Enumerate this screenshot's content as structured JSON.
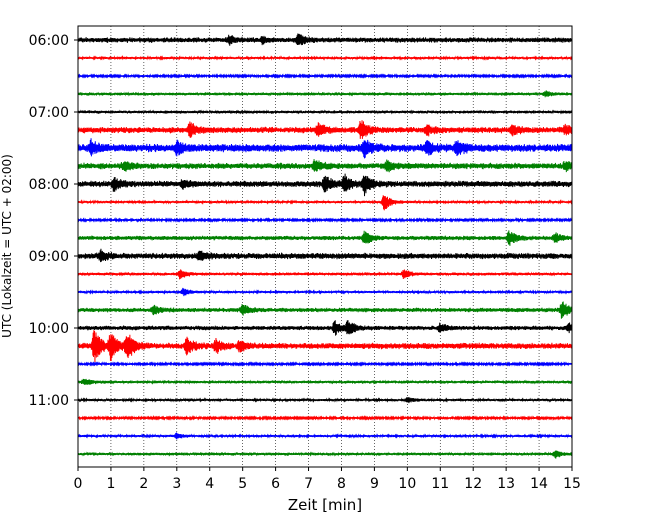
{
  "chart_data": {
    "type": "line",
    "title": "",
    "xlabel": "Zeit  [min]",
    "ylabel": "UTC (Lokalzeit = UTC + 02:00)",
    "xlim": [
      0,
      15
    ],
    "x_ticks": [
      "0",
      "1",
      "2",
      "3",
      "4",
      "5",
      "6",
      "7",
      "8",
      "9",
      "10",
      "11",
      "12",
      "13",
      "14",
      "15"
    ],
    "y_ticks": [
      "06:00",
      "07:00",
      "08:00",
      "09:00",
      "10:00",
      "11:00"
    ],
    "grid": "vertical dotted at each minute",
    "line_interval_minutes": 15,
    "colors": [
      "#000000",
      "#ff0000",
      "#0000ff",
      "#008000"
    ],
    "traces": [
      {
        "start": "06:00",
        "color": "#000000",
        "noise": 0.3,
        "events": [
          {
            "t": 4.6,
            "amp": 0.45
          },
          {
            "t": 5.6,
            "amp": 0.35
          },
          {
            "t": 6.7,
            "amp": 0.8
          }
        ]
      },
      {
        "start": "06:15",
        "color": "#ff0000",
        "noise": 0.15,
        "events": []
      },
      {
        "start": "06:30",
        "color": "#0000ff",
        "noise": 0.12,
        "events": []
      },
      {
        "start": "06:45",
        "color": "#008000",
        "noise": 0.18,
        "events": [
          {
            "t": 14.2,
            "amp": 0.3
          }
        ]
      },
      {
        "start": "07:00",
        "color": "#000000",
        "noise": 0.18,
        "events": []
      },
      {
        "start": "07:15",
        "color": "#ff0000",
        "noise": 0.35,
        "events": [
          {
            "t": 3.4,
            "amp": 0.9
          },
          {
            "t": 7.3,
            "amp": 0.8
          },
          {
            "t": 8.6,
            "amp": 1.1
          },
          {
            "t": 10.6,
            "amp": 0.5
          },
          {
            "t": 13.2,
            "amp": 0.6
          },
          {
            "t": 14.8,
            "amp": 0.5
          }
        ]
      },
      {
        "start": "07:30",
        "color": "#0000ff",
        "noise": 0.45,
        "events": [
          {
            "t": 0.4,
            "amp": 0.8
          },
          {
            "t": 3.0,
            "amp": 0.8
          },
          {
            "t": 8.7,
            "amp": 1.0
          },
          {
            "t": 10.6,
            "amp": 0.8
          },
          {
            "t": 11.5,
            "amp": 1.0
          }
        ]
      },
      {
        "start": "07:45",
        "color": "#008000",
        "noise": 0.35,
        "events": [
          {
            "t": 1.4,
            "amp": 0.6
          },
          {
            "t": 7.2,
            "amp": 0.7
          },
          {
            "t": 9.4,
            "amp": 0.6
          },
          {
            "t": 14.8,
            "amp": 0.5
          }
        ]
      },
      {
        "start": "08:00",
        "color": "#000000",
        "noise": 0.35,
        "events": [
          {
            "t": 1.1,
            "amp": 0.7
          },
          {
            "t": 3.2,
            "amp": 0.5
          },
          {
            "t": 7.5,
            "amp": 1.0
          },
          {
            "t": 8.1,
            "amp": 1.0
          },
          {
            "t": 8.7,
            "amp": 1.2
          }
        ]
      },
      {
        "start": "08:15",
        "color": "#ff0000",
        "noise": 0.15,
        "events": [
          {
            "t": 9.3,
            "amp": 1.0
          }
        ]
      },
      {
        "start": "08:30",
        "color": "#0000ff",
        "noise": 0.12,
        "events": []
      },
      {
        "start": "08:45",
        "color": "#008000",
        "noise": 0.25,
        "events": [
          {
            "t": 8.7,
            "amp": 0.8
          },
          {
            "t": 13.1,
            "amp": 0.9
          },
          {
            "t": 14.5,
            "amp": 0.5
          }
        ]
      },
      {
        "start": "09:00",
        "color": "#000000",
        "noise": 0.35,
        "events": [
          {
            "t": 0.7,
            "amp": 0.6
          },
          {
            "t": 3.7,
            "amp": 0.5
          }
        ]
      },
      {
        "start": "09:15",
        "color": "#ff0000",
        "noise": 0.18,
        "events": [
          {
            "t": 3.1,
            "amp": 0.5
          },
          {
            "t": 9.9,
            "amp": 0.5
          }
        ]
      },
      {
        "start": "09:30",
        "color": "#0000ff",
        "noise": 0.15,
        "events": [
          {
            "t": 3.2,
            "amp": 0.4
          }
        ]
      },
      {
        "start": "09:45",
        "color": "#008000",
        "noise": 0.25,
        "events": [
          {
            "t": 2.3,
            "amp": 0.5
          },
          {
            "t": 5.0,
            "amp": 0.6
          },
          {
            "t": 14.7,
            "amp": 1.0
          }
        ]
      },
      {
        "start": "10:00",
        "color": "#000000",
        "noise": 0.25,
        "events": [
          {
            "t": 7.8,
            "amp": 0.8
          },
          {
            "t": 8.2,
            "amp": 0.9
          },
          {
            "t": 11.0,
            "amp": 0.5
          },
          {
            "t": 14.9,
            "amp": 0.5
          }
        ]
      },
      {
        "start": "10:15",
        "color": "#ff0000",
        "noise": 0.35,
        "events": [
          {
            "t": 0.5,
            "amp": 2.0
          },
          {
            "t": 1.0,
            "amp": 1.6
          },
          {
            "t": 1.5,
            "amp": 1.6
          },
          {
            "t": 3.3,
            "amp": 1.0
          },
          {
            "t": 4.2,
            "amp": 0.8
          },
          {
            "t": 4.9,
            "amp": 0.6
          }
        ]
      },
      {
        "start": "10:30",
        "color": "#0000ff",
        "noise": 0.12,
        "events": []
      },
      {
        "start": "10:45",
        "color": "#008000",
        "noise": 0.18,
        "events": [
          {
            "t": 0.2,
            "amp": 0.4
          }
        ]
      },
      {
        "start": "11:00",
        "color": "#000000",
        "noise": 0.15,
        "events": [
          {
            "t": 10.0,
            "amp": 0.3
          }
        ]
      },
      {
        "start": "11:15",
        "color": "#ff0000",
        "noise": 0.12,
        "events": []
      },
      {
        "start": "11:30",
        "color": "#0000ff",
        "noise": 0.15,
        "events": [
          {
            "t": 3.0,
            "amp": 0.3
          }
        ]
      },
      {
        "start": "11:45",
        "color": "#008000",
        "noise": 0.18,
        "events": [
          {
            "t": 14.5,
            "amp": 0.4
          }
        ]
      }
    ]
  }
}
